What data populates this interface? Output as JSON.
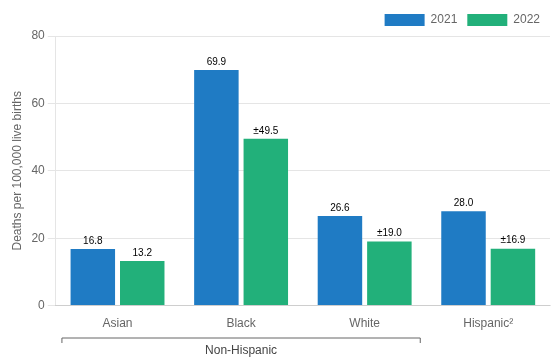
{
  "chart_data": {
    "type": "bar",
    "categories": [
      "Asian",
      "Black",
      "White",
      "Hispanic²"
    ],
    "series": [
      {
        "name": "2021",
        "color": "#1F7BC4",
        "values": [
          16.8,
          69.9,
          26.6,
          28.0
        ],
        "value_labels": [
          "16.8",
          "69.9",
          "26.6",
          "28.0"
        ]
      },
      {
        "name": "2022",
        "color": "#22B07A",
        "values": [
          13.2,
          49.5,
          19.0,
          16.9
        ],
        "value_labels": [
          "13.2",
          "±49.5",
          "±19.0",
          "±16.9"
        ]
      }
    ],
    "ylabel": "Deaths per 100,000 live births",
    "ylim": [
      0,
      80
    ],
    "yticks": [
      0,
      20,
      40,
      60,
      80
    ],
    "grid": true,
    "legend": "upper right",
    "data_labels": true,
    "annotations": [
      {
        "text": "Non-Hispanic",
        "categories": [
          "Asian",
          "Black",
          "White"
        ]
      }
    ]
  }
}
